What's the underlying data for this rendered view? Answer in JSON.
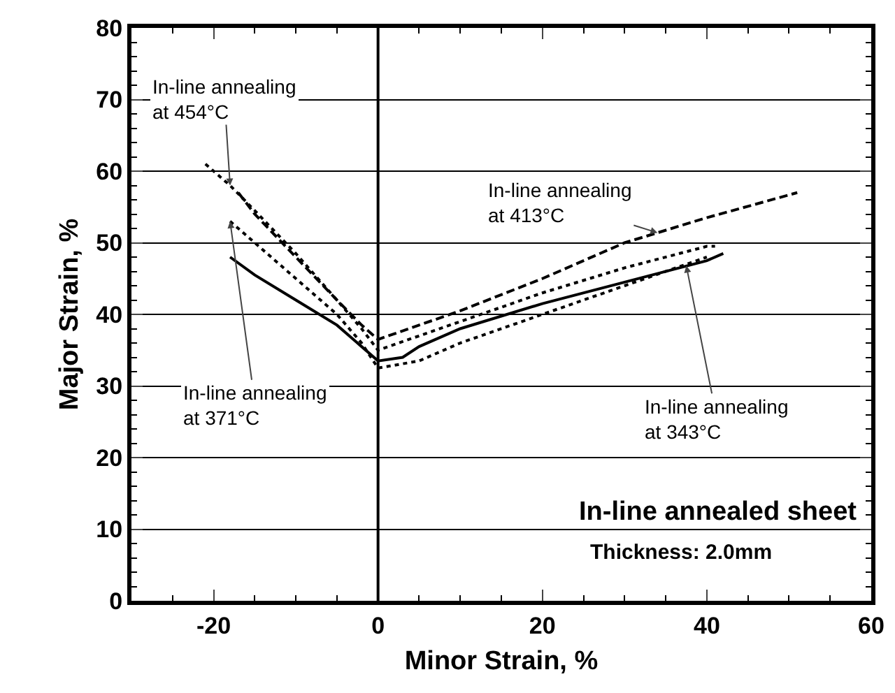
{
  "chart_data": {
    "type": "line",
    "xlabel": "Minor Strain, %",
    "ylabel": "Major Strain, %",
    "xlim": [
      -30,
      60
    ],
    "xticks": [
      {
        "value": -30,
        "label": null
      },
      -20,
      0,
      20,
      40,
      60
    ],
    "ylim": [
      0,
      80
    ],
    "yticks": [
      0,
      10,
      20,
      30,
      40,
      50,
      60,
      70,
      80
    ],
    "grid": "y",
    "marker": "none",
    "ref_lines": [
      {
        "axis": "x",
        "value": 0,
        "color": "#000000",
        "line_style": "solid"
      }
    ],
    "series": [
      {
        "color": "#000000",
        "line_style": "dotted",
        "x": [
          -21,
          -18,
          -15,
          -10,
          -5,
          -2,
          0,
          5,
          10,
          20,
          30,
          40,
          41
        ],
        "values": [
          61,
          58,
          54.5,
          48.5,
          42,
          38,
          35,
          37,
          39,
          43,
          46.5,
          49.5,
          49.5
        ]
      },
      {
        "color": "#000000",
        "line_style": "dashed",
        "x": [
          -17,
          -15,
          -10,
          -5,
          -2,
          0,
          5,
          10,
          20,
          30,
          40,
          51
        ],
        "values": [
          57,
          54,
          48,
          42,
          38.5,
          36.5,
          38.5,
          40.5,
          45,
          50,
          53.5,
          57
        ]
      },
      {
        "color": "#000000",
        "line_style": "dotted",
        "x": [
          -18,
          -15,
          -10,
          -5,
          -2,
          0,
          5,
          10,
          20,
          30,
          40
        ],
        "values": [
          53,
          50,
          45,
          40,
          36,
          32.5,
          33.5,
          36,
          40,
          44,
          48
        ]
      },
      {
        "color": "#000000",
        "line_style": "solid",
        "x": [
          -18,
          -15,
          -10,
          -5,
          -2,
          0,
          3,
          5,
          10,
          20,
          30,
          40,
          42
        ],
        "values": [
          48,
          45.5,
          42,
          38.5,
          35.5,
          33.5,
          34,
          35.5,
          38,
          41.5,
          44.5,
          47.5,
          48.5
        ]
      }
    ],
    "annotations": [
      {
        "text": "In-line annealing\nat 454°C",
        "x": -18,
        "y": 58
      },
      {
        "text": "In-line annealing\nat 371°C",
        "x": -18,
        "y": 53
      },
      {
        "text": "In-line annealing\nat 413°C",
        "x": 34,
        "y": 51.4
      },
      {
        "text": "In-line annealing\nat 343°C",
        "x": 37.5,
        "y": 46.8
      },
      "In-line annealed sheet",
      "Thickness: 2.0mm"
    ]
  }
}
